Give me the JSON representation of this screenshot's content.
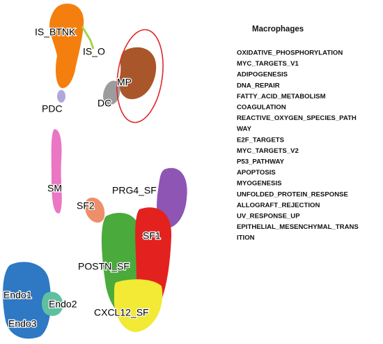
{
  "clusters": [
    "IS_BTNK",
    "IS_O",
    "PDC",
    "MP",
    "DC",
    "SM",
    "PRG4_SF",
    "SF2",
    "SF1",
    "POSTN_SF",
    "CXCL12_SF",
    "Endo1",
    "Endo2",
    "Endo3"
  ],
  "panel": {
    "title": "Macrophages",
    "pathways": [
      "OXIDATIVE_PHOSPHORYLATION",
      "MYC_TARGETS_V1",
      "ADIPOGENESIS",
      "DNA_REPAIR",
      "FATTY_ACID_METABOLISM",
      "COAGULATION",
      "REACTIVE_OXYGEN_SPECIES_PATH",
      "WAY",
      "E2F_TARGETS",
      "MYC_TARGETS_V2",
      "P53_PATHWAY",
      "APOPTOSIS",
      "MYOGENESIS",
      "UNFOLDED_PROTEIN_RESPONSE",
      "ALLOGRAFT_REJECTION",
      "UV_RESPONSE_UP",
      "EPITHELIAL_MESENCHYMAL_TRANS",
      "ITION"
    ]
  }
}
